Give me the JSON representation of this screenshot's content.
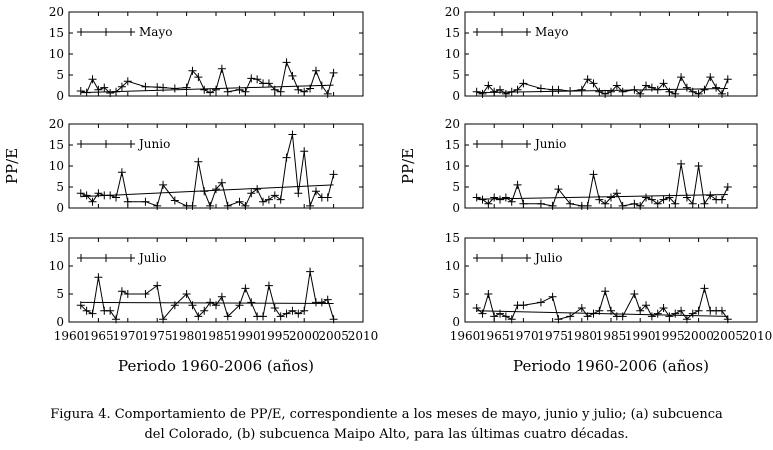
{
  "caption": {
    "line1": "Figura 4. Comportamiento de PP/E, correspondiente a los meses de mayo, junio y julio; (a) subcuenca",
    "line2": "del Colorado, (b) subcuenca Maipo Alto, para las últimas cuatro décadas."
  },
  "chart_data": [
    {
      "type": "line",
      "id": "a",
      "ylabel": "PP/E",
      "xlabel": "Periodo 1960-2006 (años)",
      "xlim": [
        1960,
        2010
      ],
      "xticks": [
        1960,
        1965,
        1970,
        1975,
        1980,
        1985,
        1990,
        1995,
        2000,
        2005,
        2010
      ],
      "panels": [
        {
          "legend": "Mayo",
          "ylim": [
            0,
            20
          ],
          "yticks": [
            0,
            5,
            10,
            15,
            20
          ],
          "x": [
            1962,
            1963,
            1964,
            1965,
            1966,
            1967,
            1968,
            1969,
            1970,
            1973,
            1975,
            1976,
            1978,
            1980,
            1981,
            1982,
            1983,
            1984,
            1985,
            1986,
            1987,
            1989,
            1990,
            1991,
            1992,
            1993,
            1994,
            1995,
            1996,
            1997,
            1998,
            1999,
            2000,
            2001,
            2002,
            2003,
            2004,
            2005
          ],
          "values": [
            1.2,
            0.8,
            4.0,
            1.5,
            2.0,
            0.7,
            1.0,
            2.2,
            3.5,
            2.2,
            2.1,
            2.0,
            1.8,
            2.0,
            6.0,
            4.5,
            1.5,
            0.8,
            1.5,
            6.5,
            1.0,
            1.5,
            1.0,
            4.2,
            4.0,
            3.0,
            3.0,
            1.5,
            1.0,
            8.0,
            4.8,
            1.5,
            1.0,
            1.8,
            6.0,
            2.5,
            0.5,
            5.5
          ],
          "trend": [
            0.8,
            2.6
          ]
        },
        {
          "legend": "Junio",
          "ylim": [
            0,
            20
          ],
          "yticks": [
            0,
            5,
            10,
            15,
            20
          ],
          "x": [
            1962,
            1963,
            1964,
            1965,
            1966,
            1967,
            1968,
            1969,
            1970,
            1973,
            1975,
            1976,
            1978,
            1980,
            1981,
            1982,
            1983,
            1984,
            1985,
            1986,
            1987,
            1989,
            1990,
            1991,
            1992,
            1993,
            1994,
            1995,
            1996,
            1997,
            1998,
            1999,
            2000,
            2001,
            2002,
            2003,
            2004,
            2005
          ],
          "values": [
            3.5,
            3.0,
            1.5,
            3.5,
            3.0,
            3.0,
            2.5,
            8.5,
            1.5,
            1.5,
            0.5,
            5.5,
            1.8,
            0.5,
            0.5,
            11.0,
            4.0,
            0.5,
            4.5,
            6.0,
            0.5,
            1.5,
            0.5,
            3.5,
            4.5,
            1.5,
            2.0,
            3.0,
            2.0,
            12.0,
            17.5,
            3.5,
            13.5,
            0.5,
            4.0,
            2.5,
            2.5,
            8.0
          ],
          "trend": [
            2.7,
            5.5
          ]
        },
        {
          "legend": "Julio",
          "ylim": [
            0,
            15
          ],
          "yticks": [
            0,
            5,
            10,
            15
          ],
          "x": [
            1962,
            1963,
            1964,
            1965,
            1966,
            1967,
            1968,
            1969,
            1970,
            1973,
            1975,
            1976,
            1978,
            1980,
            1981,
            1982,
            1983,
            1984,
            1985,
            1986,
            1987,
            1989,
            1990,
            1991,
            1992,
            1993,
            1994,
            1995,
            1996,
            1997,
            1998,
            1999,
            2000,
            2001,
            2002,
            2003,
            2004,
            2005
          ],
          "values": [
            3.0,
            2.0,
            1.5,
            8.0,
            2.0,
            2.0,
            0.5,
            5.5,
            5.0,
            5.0,
            6.5,
            0.5,
            3.0,
            5.0,
            3.0,
            1.0,
            2.0,
            3.5,
            3.0,
            4.5,
            1.0,
            3.0,
            6.0,
            3.5,
            1.0,
            1.0,
            6.5,
            2.5,
            1.0,
            1.5,
            2.0,
            1.5,
            2.0,
            9.0,
            3.5,
            3.5,
            4.0,
            0.5
          ],
          "trend": [
            3.5,
            3.3
          ]
        }
      ]
    },
    {
      "type": "line",
      "id": "b",
      "ylabel": "PP/E",
      "xlabel": "Periodo 1960-2006 (años)",
      "xlim": [
        1960,
        2010
      ],
      "xticks": [
        1960,
        1965,
        1970,
        1975,
        1980,
        1985,
        1990,
        1995,
        2000,
        2005,
        2010
      ],
      "panels": [
        {
          "legend": "Mayo",
          "ylim": [
            0,
            20
          ],
          "yticks": [
            0,
            5,
            10,
            15,
            20
          ],
          "x": [
            1962,
            1963,
            1964,
            1965,
            1966,
            1967,
            1968,
            1969,
            1970,
            1973,
            1975,
            1976,
            1978,
            1980,
            1981,
            1982,
            1983,
            1984,
            1985,
            1986,
            1987,
            1989,
            1990,
            1991,
            1992,
            1993,
            1994,
            1995,
            1996,
            1997,
            1998,
            1999,
            2000,
            2001,
            2002,
            2003,
            2004,
            2005
          ],
          "values": [
            1.0,
            0.5,
            2.5,
            1.0,
            1.5,
            0.5,
            1.0,
            1.5,
            3.0,
            1.8,
            1.5,
            1.5,
            1.2,
            1.5,
            4.0,
            3.0,
            1.0,
            0.5,
            1.0,
            2.5,
            1.0,
            1.5,
            0.5,
            2.5,
            2.0,
            1.5,
            3.0,
            1.0,
            0.5,
            4.5,
            2.0,
            1.0,
            0.5,
            1.5,
            4.5,
            2.0,
            0.5,
            4.0
          ],
          "trend": [
            0.8,
            1.8
          ]
        },
        {
          "legend": "Junio",
          "ylim": [
            0,
            20
          ],
          "yticks": [
            0,
            5,
            10,
            15,
            20
          ],
          "x": [
            1962,
            1963,
            1964,
            1965,
            1966,
            1967,
            1968,
            1969,
            1970,
            1973,
            1975,
            1976,
            1978,
            1980,
            1981,
            1982,
            1983,
            1984,
            1985,
            1986,
            1987,
            1989,
            1990,
            1991,
            1992,
            1993,
            1994,
            1995,
            1996,
            1997,
            1998,
            1999,
            2000,
            2001,
            2002,
            2003,
            2004,
            2005
          ],
          "values": [
            2.5,
            2.0,
            1.0,
            2.5,
            2.0,
            2.5,
            1.5,
            5.5,
            1.0,
            1.0,
            0.5,
            4.5,
            1.0,
            0.5,
            0.5,
            8.0,
            2.0,
            1.0,
            2.5,
            3.5,
            0.5,
            1.0,
            0.5,
            2.5,
            2.0,
            1.0,
            2.0,
            2.5,
            1.0,
            10.5,
            2.5,
            1.0,
            10.0,
            1.0,
            3.0,
            2.0,
            2.0,
            5.0
          ],
          "trend": [
            2.1,
            3.2
          ]
        },
        {
          "legend": "Julio",
          "ylim": [
            0,
            15
          ],
          "yticks": [
            0,
            5,
            10,
            15
          ],
          "x": [
            1962,
            1963,
            1964,
            1965,
            1966,
            1967,
            1968,
            1969,
            1970,
            1973,
            1975,
            1976,
            1978,
            1980,
            1981,
            1982,
            1983,
            1984,
            1985,
            1986,
            1987,
            1989,
            1990,
            1991,
            1992,
            1993,
            1994,
            1995,
            1996,
            1997,
            1998,
            1999,
            2000,
            2001,
            2002,
            2003,
            2004,
            2005
          ],
          "values": [
            2.5,
            1.5,
            5.0,
            1.0,
            1.5,
            1.0,
            0.5,
            3.0,
            3.0,
            3.5,
            4.5,
            0.5,
            1.0,
            2.5,
            1.0,
            1.5,
            2.0,
            5.5,
            2.0,
            1.0,
            1.0,
            5.0,
            2.0,
            3.0,
            1.0,
            1.5,
            2.5,
            1.0,
            1.5,
            2.0,
            0.5,
            1.5,
            2.0,
            6.0,
            2.0,
            2.0,
            2.0,
            0.5
          ],
          "trend": [
            2.0,
            1.0
          ]
        }
      ]
    }
  ]
}
